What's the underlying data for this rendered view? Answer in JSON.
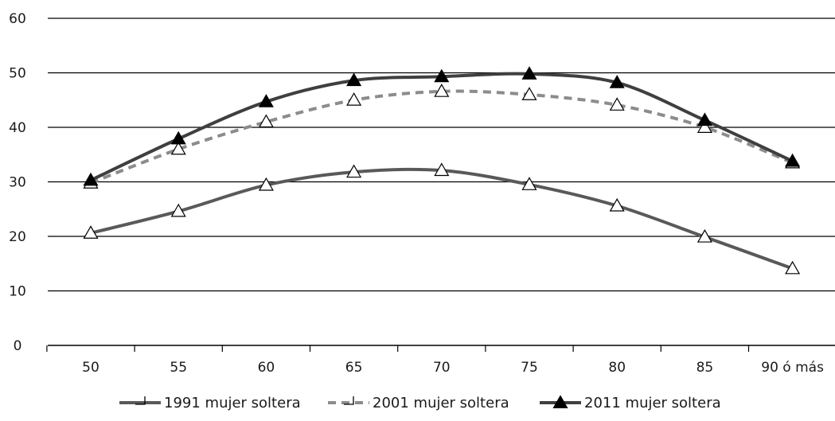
{
  "chart_data": {
    "type": "line",
    "title": "",
    "xlabel": "",
    "ylabel": "",
    "categories": [
      "50",
      "55",
      "60",
      "65",
      "70",
      "75",
      "80",
      "85",
      "90 ó más"
    ],
    "ylim": [
      0,
      60
    ],
    "yticks": [
      0,
      10,
      20,
      30,
      40,
      50,
      60
    ],
    "grid": true,
    "legend_position": "bottom",
    "series": [
      {
        "name": "1991 mujer soltera",
        "values": [
          20.6,
          24.6,
          29.4,
          31.8,
          32.1,
          29.5,
          25.6,
          19.9,
          14.1
        ],
        "color": "#595959",
        "line_style": "solid",
        "marker": "open-triangle"
      },
      {
        "name": "2001 mujer soltera",
        "values": [
          29.8,
          36.0,
          41.0,
          45.0,
          46.6,
          46.0,
          44.1,
          40.0,
          33.5
        ],
        "color": "#8c8c8c",
        "line_style": "dashed",
        "marker": "open-triangle"
      },
      {
        "name": "2011 mujer soltera",
        "values": [
          30.3,
          37.9,
          44.7,
          48.6,
          49.3,
          49.8,
          48.2,
          41.3,
          33.8
        ],
        "color": "#3f3f3f",
        "line_style": "solid",
        "marker": "filled-triangle"
      }
    ]
  }
}
